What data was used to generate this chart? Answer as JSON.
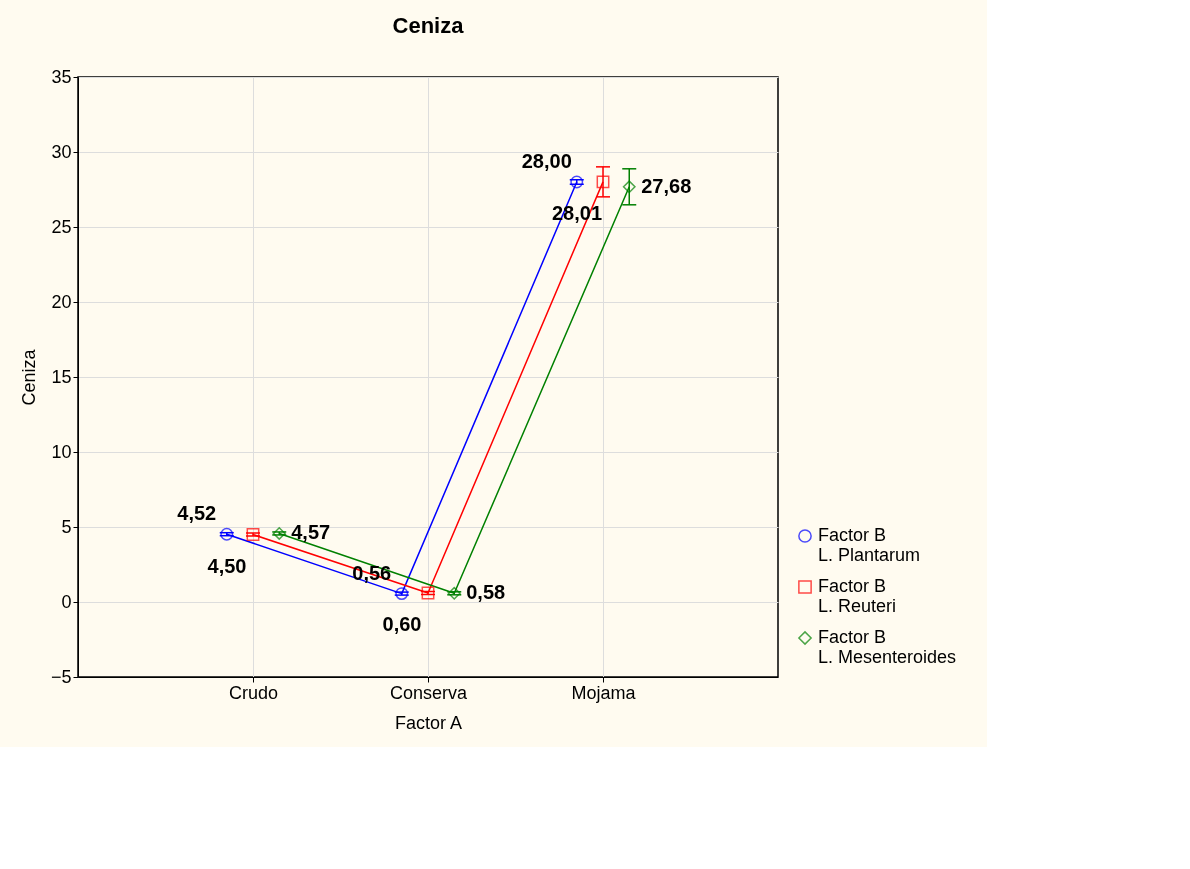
{
  "chart_data": {
    "type": "line",
    "title": "Ceniza",
    "xlabel": "Factor A",
    "ylabel": "Ceniza",
    "categories": [
      "Crudo",
      "Conserva",
      "Mojama"
    ],
    "series": [
      {
        "name": "Factor B\nL. Plantarum",
        "color": "#0000ff",
        "marker": "circle",
        "values": [
          4.52,
          0.56,
          28.0
        ],
        "errors": [
          0.1,
          0.1,
          0.15
        ],
        "value_labels": [
          "4,52",
          "0,56",
          "28,00"
        ]
      },
      {
        "name": "Factor B\nL. Reuteri",
        "color": "#ff0000",
        "marker": "square",
        "values": [
          4.5,
          0.6,
          28.01
        ],
        "errors": [
          0.1,
          0.1,
          1.0
        ],
        "value_labels": [
          "4,50",
          "0,60",
          "28,01"
        ]
      },
      {
        "name": "Factor B\nL. Mesenteroides",
        "color": "#008000",
        "marker": "diamond",
        "values": [
          4.57,
          0.58,
          27.68
        ],
        "errors": [
          0.1,
          0.1,
          1.2
        ],
        "value_labels": [
          "4,57",
          "0,58",
          "27,68"
        ]
      }
    ],
    "ylim": [
      -5,
      35
    ],
    "yticks": [
      -5,
      0,
      5,
      10,
      15,
      20,
      25,
      30,
      35
    ],
    "grid": true,
    "legend": "bottom right",
    "line_style": "solid"
  }
}
